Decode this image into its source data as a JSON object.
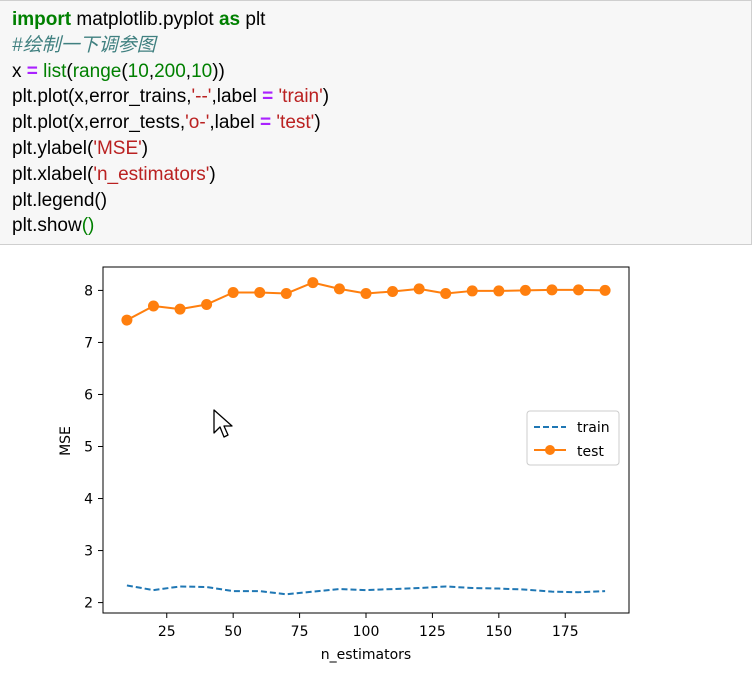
{
  "code": {
    "lines": [
      [
        {
          "t": "import",
          "c": "kw"
        },
        {
          "t": " matplotlib.pyplot ",
          "c": "plain"
        },
        {
          "t": "as",
          "c": "kw"
        },
        {
          "t": " plt",
          "c": "plain"
        }
      ],
      [
        {
          "t": "#绘制一下调参图",
          "c": "cm"
        }
      ],
      [
        {
          "t": "x ",
          "c": "plain"
        },
        {
          "t": "=",
          "c": "op"
        },
        {
          "t": " ",
          "c": "plain"
        },
        {
          "t": "list",
          "c": "bi"
        },
        {
          "t": "(",
          "c": "plain"
        },
        {
          "t": "range",
          "c": "bi"
        },
        {
          "t": "(",
          "c": "plain"
        },
        {
          "t": "10",
          "c": "num"
        },
        {
          "t": ",",
          "c": "plain"
        },
        {
          "t": "200",
          "c": "num"
        },
        {
          "t": ",",
          "c": "plain"
        },
        {
          "t": "10",
          "c": "num"
        },
        {
          "t": "))",
          "c": "plain"
        }
      ],
      [
        {
          "t": "plt.plot(x,error_trains,",
          "c": "plain"
        },
        {
          "t": "'--'",
          "c": "str"
        },
        {
          "t": ",label ",
          "c": "plain"
        },
        {
          "t": "=",
          "c": "op"
        },
        {
          "t": " ",
          "c": "plain"
        },
        {
          "t": "'train'",
          "c": "str"
        },
        {
          "t": ")",
          "c": "plain"
        }
      ],
      [
        {
          "t": "plt.plot(x,error_tests,",
          "c": "plain"
        },
        {
          "t": "'o-'",
          "c": "str"
        },
        {
          "t": ",label ",
          "c": "plain"
        },
        {
          "t": "=",
          "c": "op"
        },
        {
          "t": " ",
          "c": "plain"
        },
        {
          "t": "'test'",
          "c": "str"
        },
        {
          "t": ")",
          "c": "plain"
        }
      ],
      [
        {
          "t": "plt.ylabel(",
          "c": "plain"
        },
        {
          "t": "'MSE'",
          "c": "str"
        },
        {
          "t": ")",
          "c": "plain"
        }
      ],
      [
        {
          "t": "plt.xlabel(",
          "c": "plain"
        },
        {
          "t": "'n_estimators'",
          "c": "str"
        },
        {
          "t": ")",
          "c": "plain"
        }
      ],
      [
        {
          "t": "plt.legend()",
          "c": "plain"
        }
      ],
      [
        {
          "t": "plt.show",
          "c": "plain"
        },
        {
          "t": "()",
          "c": "bi"
        }
      ]
    ]
  },
  "colors": {
    "train": "#1f77b4",
    "test": "#ff7f0e",
    "keyword": "#008000",
    "operator": "#aa22ff",
    "string": "#ba2121",
    "comment": "#408080"
  },
  "chart_data": {
    "type": "line",
    "xlabel": "n_estimators",
    "ylabel": "MSE",
    "xlim": [
      1,
      199
    ],
    "ylim": [
      1.8,
      8.45
    ],
    "x_ticks": [
      25,
      50,
      75,
      100,
      125,
      150,
      175
    ],
    "y_ticks": [
      2,
      3,
      4,
      5,
      6,
      7,
      8
    ],
    "legend_position": "center-right",
    "x": [
      10,
      20,
      30,
      40,
      50,
      60,
      70,
      80,
      90,
      100,
      110,
      120,
      130,
      140,
      150,
      160,
      170,
      180,
      190
    ],
    "series": [
      {
        "name": "train",
        "style": "dashed",
        "values": [
          2.33,
          2.24,
          2.31,
          2.3,
          2.22,
          2.22,
          2.16,
          2.21,
          2.26,
          2.24,
          2.26,
          2.28,
          2.31,
          2.28,
          2.27,
          2.25,
          2.21,
          2.2,
          2.22
        ]
      },
      {
        "name": "test",
        "style": "o-",
        "values": [
          7.43,
          7.7,
          7.64,
          7.73,
          7.96,
          7.96,
          7.94,
          8.15,
          8.03,
          7.94,
          7.98,
          8.03,
          7.94,
          7.99,
          7.99,
          8.0,
          8.01,
          8.01,
          8.0
        ]
      }
    ]
  }
}
